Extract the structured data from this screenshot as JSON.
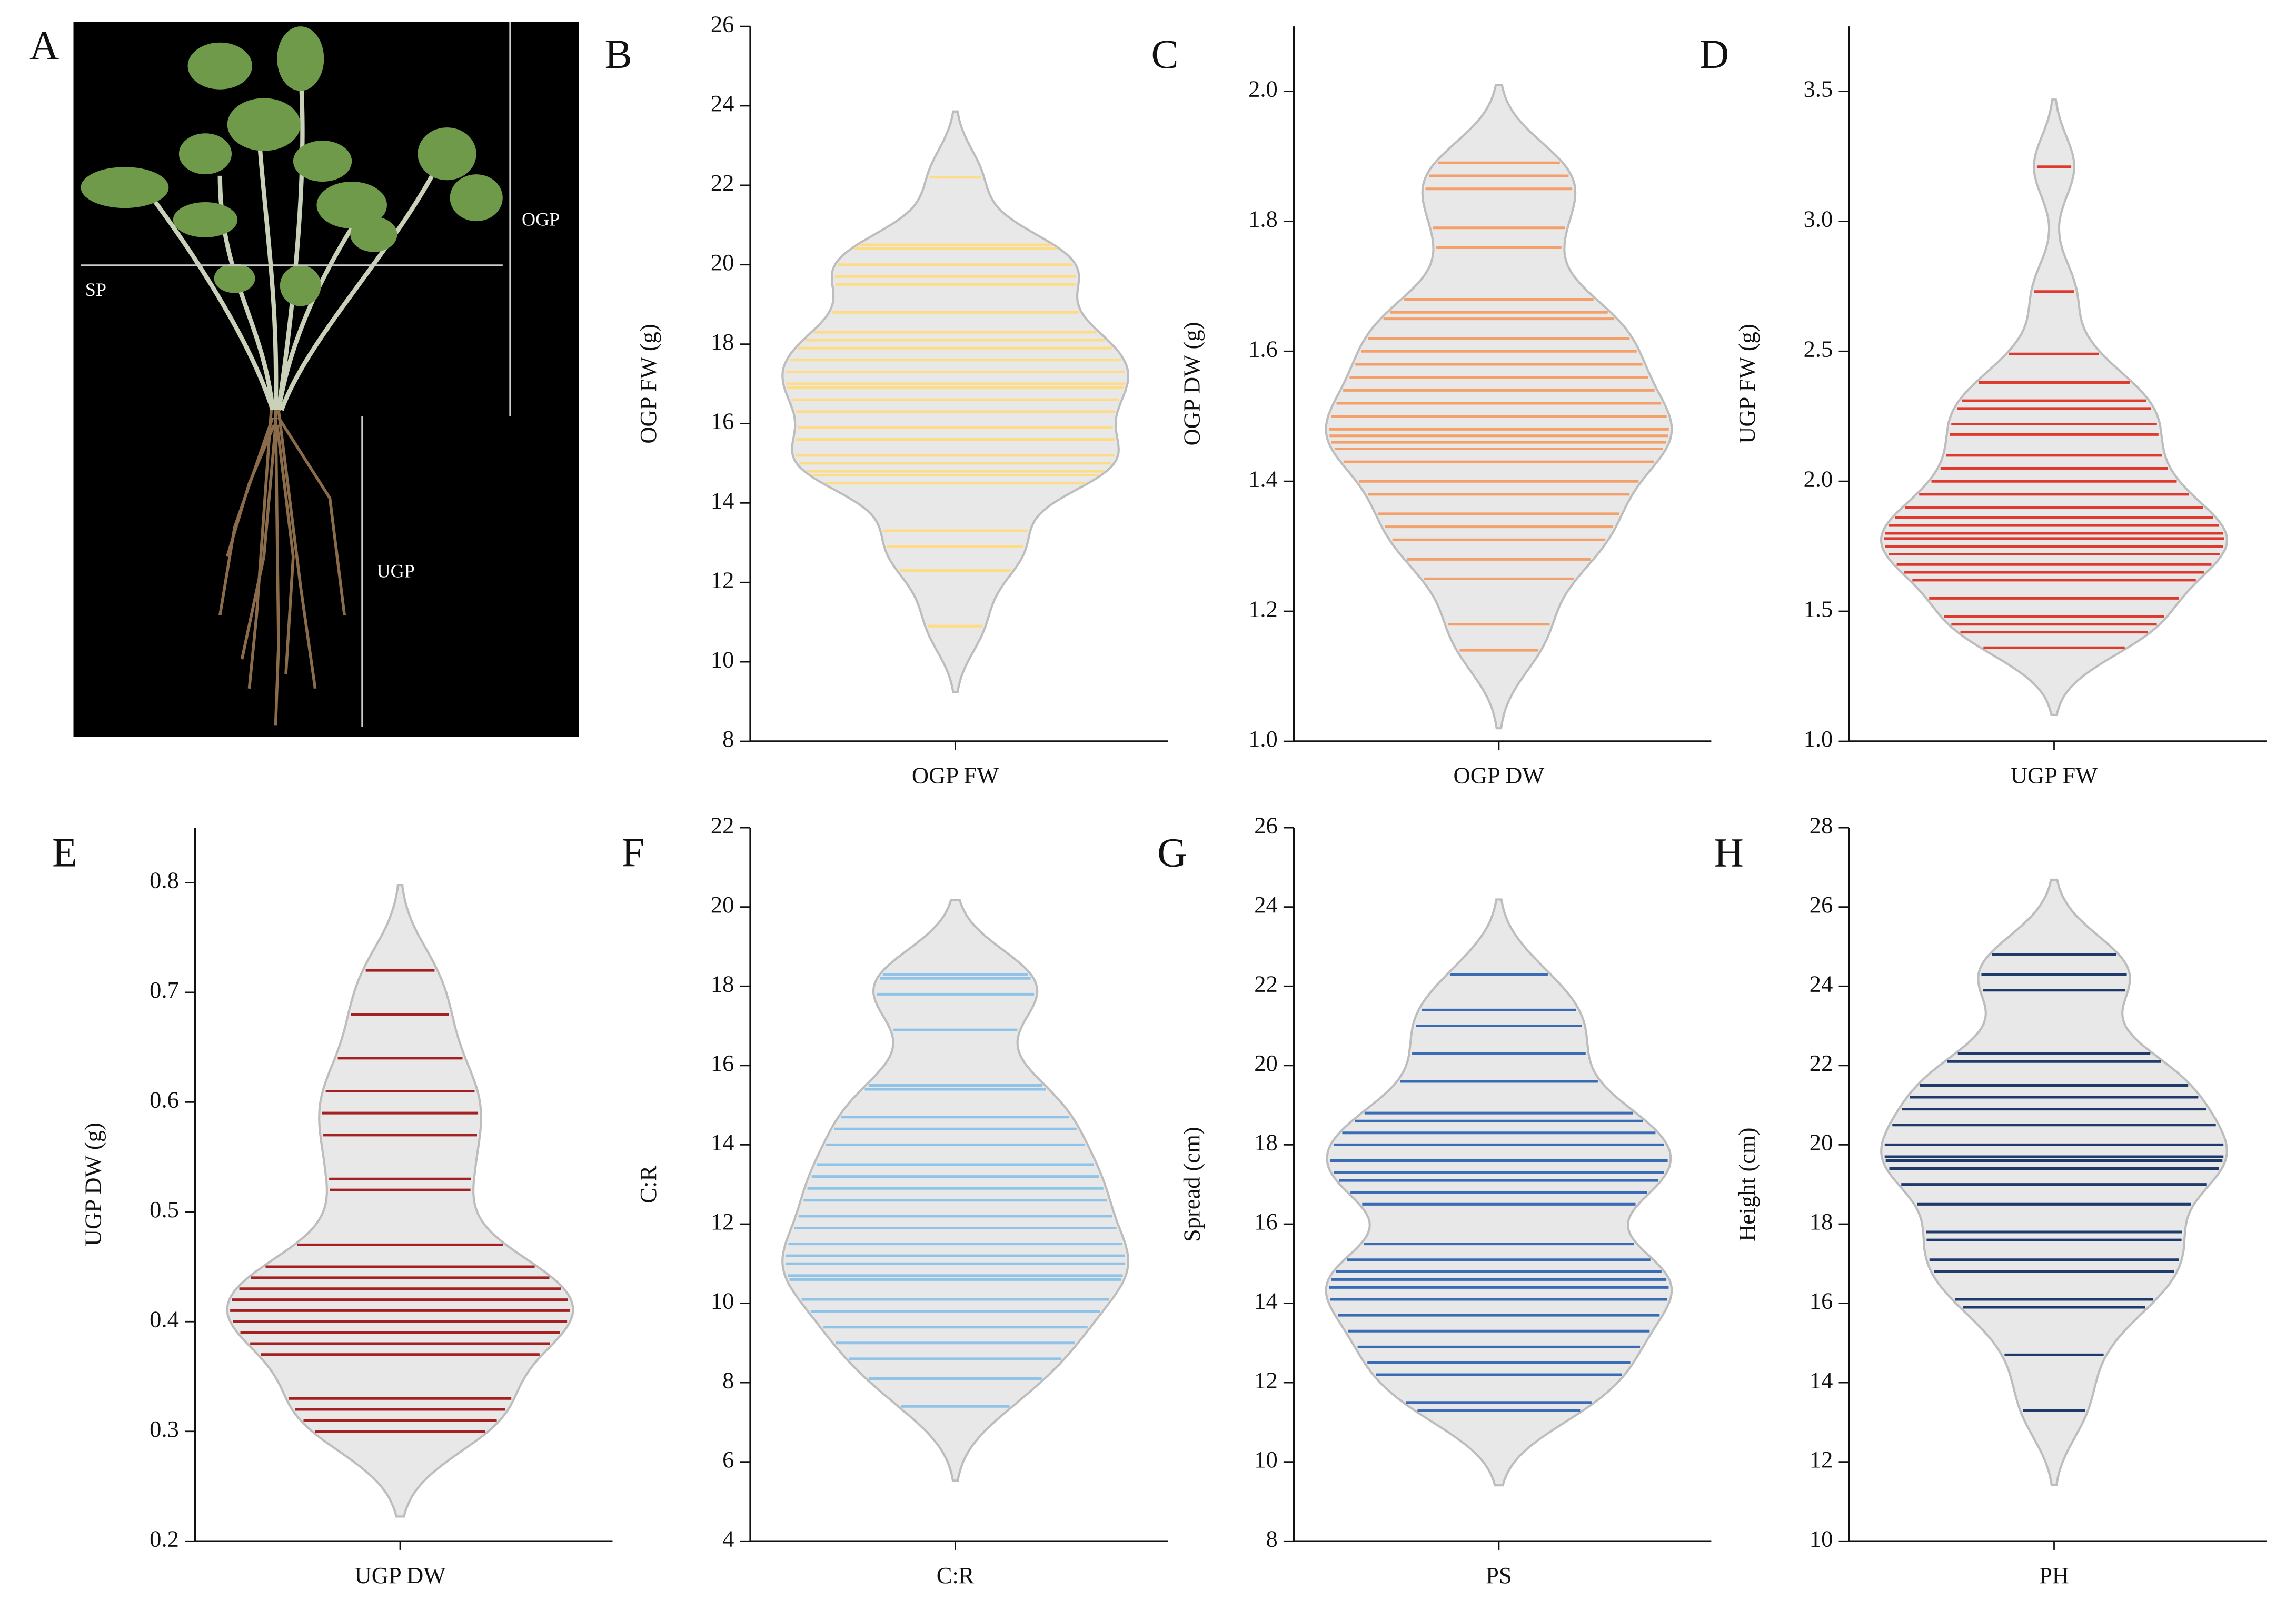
{
  "panel_a": {
    "label": "A",
    "annotations": [
      "OGP",
      "SP",
      "UGP"
    ]
  },
  "chart_data": [
    {
      "type": "violin",
      "panel": "B",
      "y_label": "OGP FW (g)",
      "categories": [
        "OGP FW"
      ],
      "color": "#fddc85",
      "ylim": [
        8,
        26
      ],
      "yticks": [
        8,
        10,
        12,
        14,
        16,
        18,
        20,
        22,
        24,
        26
      ],
      "values": [
        10.9,
        12.3,
        12.9,
        13.3,
        14.5,
        14.7,
        14.8,
        15.0,
        15.2,
        15.6,
        15.9,
        16.3,
        16.6,
        16.9,
        17.0,
        17.3,
        17.6,
        17.9,
        18.1,
        18.3,
        18.8,
        19.5,
        19.7,
        20.0,
        20.4,
        20.5,
        22.2
      ]
    },
    {
      "type": "violin",
      "panel": "C",
      "y_label": "OGP DW (g)",
      "categories": [
        "OGP DW"
      ],
      "color": "#f4a06a",
      "ylim": [
        1.0,
        2.1
      ],
      "yticks": [
        {
          "value": 1,
          "label": "1.0"
        },
        1.2,
        1.4,
        1.6,
        1.8,
        {
          "value": 2,
          "label": "2.0"
        }
      ],
      "values": [
        1.14,
        1.18,
        1.25,
        1.28,
        1.31,
        1.33,
        1.35,
        1.38,
        1.4,
        1.43,
        1.45,
        1.46,
        1.47,
        1.48,
        1.5,
        1.52,
        1.54,
        1.56,
        1.58,
        1.6,
        1.62,
        1.65,
        1.66,
        1.68,
        1.76,
        1.79,
        1.85,
        1.87,
        1.89
      ]
    },
    {
      "type": "violin",
      "panel": "D",
      "y_label": "UGP FW (g)",
      "categories": [
        "UGP FW"
      ],
      "color": "#e03a2f",
      "ylim": [
        1.0,
        3.75
      ],
      "yticks": [
        {
          "value": 1,
          "label": "1.0"
        },
        1.5,
        {
          "value": 2,
          "label": "2.0"
        },
        2.5,
        {
          "value": 3,
          "label": "3.0"
        },
        3.5
      ],
      "values": [
        1.36,
        1.42,
        1.45,
        1.48,
        1.55,
        1.62,
        1.65,
        1.68,
        1.72,
        1.75,
        1.78,
        1.8,
        1.83,
        1.86,
        1.9,
        1.95,
        2.0,
        2.05,
        2.1,
        2.18,
        2.22,
        2.28,
        2.31,
        2.38,
        2.49,
        2.73,
        3.21
      ]
    },
    {
      "type": "violin",
      "panel": "E",
      "y_label": "UGP DW (g)",
      "categories": [
        "UGP DW"
      ],
      "color": "#a52020",
      "ylim": [
        0.2,
        0.85
      ],
      "yticks": [
        0.2,
        0.3,
        0.4,
        0.5,
        0.6,
        0.7,
        0.8
      ],
      "values": [
        0.3,
        0.31,
        0.32,
        0.33,
        0.37,
        0.38,
        0.39,
        0.4,
        0.41,
        0.42,
        0.43,
        0.44,
        0.45,
        0.47,
        0.52,
        0.53,
        0.57,
        0.59,
        0.61,
        0.64,
        0.68,
        0.72
      ]
    },
    {
      "type": "violin",
      "panel": "F",
      "y_label": "C:R",
      "categories": [
        "C:R"
      ],
      "color": "#8fc3e8",
      "ylim": [
        4,
        22
      ],
      "yticks": [
        4,
        6,
        8,
        10,
        12,
        14,
        16,
        18,
        20,
        22
      ],
      "values": [
        7.4,
        8.1,
        8.6,
        9.0,
        9.4,
        9.8,
        10.1,
        10.6,
        10.7,
        11.0,
        11.2,
        11.5,
        11.9,
        12.2,
        12.6,
        12.9,
        13.2,
        13.5,
        14.0,
        14.4,
        14.7,
        15.4,
        15.5,
        16.9,
        17.8,
        18.2,
        18.3
      ]
    },
    {
      "type": "violin",
      "panel": "G",
      "y_label": "Spread (cm)",
      "categories": [
        "PS"
      ],
      "color": "#3a6cb5",
      "ylim": [
        8,
        26
      ],
      "yticks": [
        8,
        10,
        12,
        14,
        16,
        18,
        20,
        22,
        24,
        26
      ],
      "values": [
        11.3,
        11.5,
        12.2,
        12.5,
        12.9,
        13.3,
        13.7,
        14.1,
        14.4,
        14.6,
        14.8,
        15.1,
        15.5,
        16.5,
        16.8,
        17.1,
        17.3,
        17.6,
        18.0,
        18.3,
        18.6,
        18.8,
        19.6,
        20.3,
        21.0,
        21.4,
        22.3
      ]
    },
    {
      "type": "violin",
      "panel": "H",
      "y_label": "Height (cm)",
      "categories": [
        "PH"
      ],
      "color": "#1f3b6b",
      "ylim": [
        10,
        28
      ],
      "yticks": [
        10,
        12,
        14,
        16,
        18,
        20,
        22,
        24,
        26,
        28
      ],
      "values": [
        13.3,
        14.7,
        15.9,
        16.1,
        16.8,
        17.1,
        17.6,
        17.8,
        18.5,
        19.0,
        19.4,
        19.6,
        19.7,
        20.0,
        20.5,
        20.9,
        21.2,
        21.5,
        22.1,
        22.3,
        23.9,
        24.3,
        24.8
      ]
    }
  ]
}
